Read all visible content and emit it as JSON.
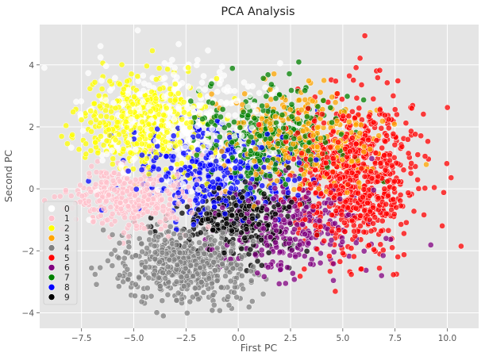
{
  "chart_data": {
    "type": "scatter",
    "title": "PCA Analysis",
    "xlabel": "First PC",
    "ylabel": "Second PC",
    "xlim": [
      -9.5,
      11.5
    ],
    "ylim": [
      -4.5,
      5.3
    ],
    "x_ticks": [
      -7.5,
      -5.0,
      -2.5,
      0.0,
      2.5,
      5.0,
      7.5,
      10.0
    ],
    "x_tick_labels": [
      "−7.5",
      "−5.0",
      "−2.5",
      "0.0",
      "2.5",
      "5.0",
      "7.5",
      "10.0"
    ],
    "y_ticks": [
      -4,
      -2,
      0,
      2,
      4
    ],
    "y_tick_labels": [
      "−4",
      "−2",
      "0",
      "2",
      "4"
    ],
    "grid": true,
    "background_color": "#e5e5e5",
    "legend_placement": "lower-left",
    "series": [
      {
        "name": "0",
        "color": "#ffffff",
        "center": [
          -2.8,
          2.0
        ],
        "spread": [
          2.2,
          1.0
        ],
        "count": 380
      },
      {
        "name": "1",
        "color": "#ffc0cb",
        "center": [
          -5.2,
          -0.3
        ],
        "spread": [
          1.4,
          0.5
        ],
        "count": 360
      },
      {
        "name": "2",
        "color": "#ffff00",
        "center": [
          -4.5,
          2.2
        ],
        "spread": [
          1.4,
          0.8
        ],
        "count": 440
      },
      {
        "name": "3",
        "color": "#ffa500",
        "center": [
          3.0,
          1.6
        ],
        "spread": [
          1.8,
          0.9
        ],
        "count": 320
      },
      {
        "name": "4",
        "color": "#808080",
        "center": [
          -2.4,
          -2.4
        ],
        "spread": [
          1.5,
          0.6
        ],
        "count": 620
      },
      {
        "name": "5",
        "color": "#ff0000",
        "center": [
          5.6,
          0.4
        ],
        "spread": [
          1.5,
          1.2
        ],
        "count": 780
      },
      {
        "name": "6",
        "color": "#800080",
        "center": [
          2.5,
          -1.3
        ],
        "spread": [
          1.7,
          0.8
        ],
        "count": 300
      },
      {
        "name": "7",
        "color": "#008000",
        "center": [
          1.5,
          1.7
        ],
        "spread": [
          1.6,
          0.8
        ],
        "count": 340
      },
      {
        "name": "8",
        "color": "#0000ff",
        "center": [
          -1.0,
          0.6
        ],
        "spread": [
          2.0,
          0.8
        ],
        "count": 360
      },
      {
        "name": "9",
        "color": "#000000",
        "center": [
          0.2,
          -1.0
        ],
        "spread": [
          1.4,
          0.6
        ],
        "count": 300
      }
    ]
  }
}
